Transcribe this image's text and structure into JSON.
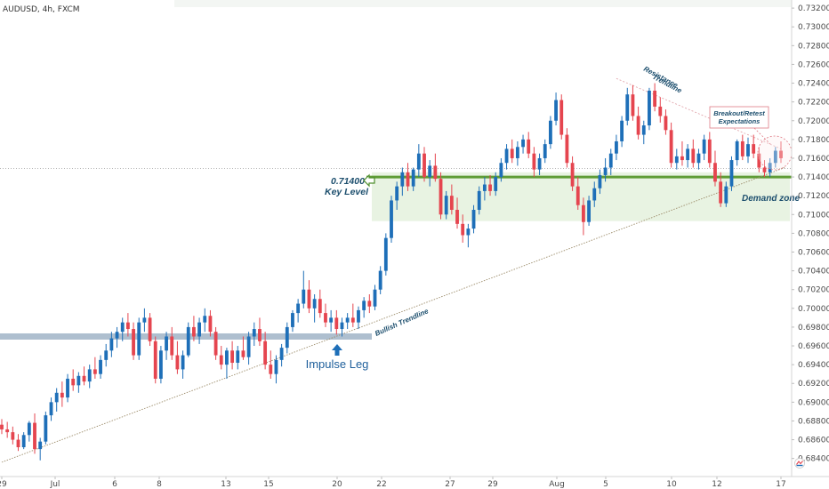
{
  "header": {
    "symbol": "AUDUSD, 4h, FXCM"
  },
  "colors": {
    "bull": "#1e6fb8",
    "bear": "#e5454f",
    "key_level": "#5f9c36",
    "demand_zone": "#e8f3e2",
    "impulse_band": "#aebfcf",
    "trendline": "#9c8c6a",
    "annotation_text": "#1d4f6e",
    "resistance": "#e2a7ad"
  },
  "chart_data": {
    "type": "candlestick",
    "title": "AUDUSD, 4h, FXCM",
    "ylim": [
      0.6834,
      0.7322
    ],
    "y_ticks": [
      "0.73200",
      "0.73000",
      "0.72800",
      "0.72600",
      "0.72400",
      "0.72200",
      "0.72000",
      "0.71800",
      "0.71600",
      "0.71400",
      "0.71200",
      "0.71000",
      "0.70800",
      "0.70600",
      "0.70400",
      "0.70200",
      "0.70000",
      "0.69800",
      "0.69600",
      "0.69400",
      "0.69200",
      "0.69000",
      "0.68800",
      "0.68600",
      "0.68400"
    ],
    "x_ticks": [
      "29",
      "Jul",
      "6",
      "8",
      "13",
      "15",
      "20",
      "22",
      "27",
      "29",
      "Aug",
      "5",
      "10",
      "12",
      "17"
    ],
    "candles": [
      [
        0.6876,
        0.6882,
        0.6866,
        0.6871
      ],
      [
        0.6871,
        0.6879,
        0.6862,
        0.6868
      ],
      [
        0.6868,
        0.6874,
        0.6855,
        0.686
      ],
      [
        0.686,
        0.6866,
        0.6848,
        0.6852
      ],
      [
        0.6852,
        0.6868,
        0.685,
        0.6865
      ],
      [
        0.6865,
        0.688,
        0.6858,
        0.6878
      ],
      [
        0.6878,
        0.6888,
        0.6845,
        0.685
      ],
      [
        0.685,
        0.6862,
        0.6838,
        0.6858
      ],
      [
        0.6858,
        0.689,
        0.6855,
        0.6886
      ],
      [
        0.6886,
        0.6905,
        0.688,
        0.69
      ],
      [
        0.69,
        0.6915,
        0.689,
        0.691
      ],
      [
        0.691,
        0.6922,
        0.6895,
        0.6905
      ],
      [
        0.6905,
        0.693,
        0.69,
        0.6925
      ],
      [
        0.6925,
        0.6935,
        0.6912,
        0.6918
      ],
      [
        0.6918,
        0.6932,
        0.691,
        0.6928
      ],
      [
        0.6928,
        0.6938,
        0.6918,
        0.6922
      ],
      [
        0.6922,
        0.694,
        0.6915,
        0.6935
      ],
      [
        0.6935,
        0.6948,
        0.6925,
        0.693
      ],
      [
        0.693,
        0.695,
        0.6925,
        0.6945
      ],
      [
        0.6945,
        0.6962,
        0.6938,
        0.6955
      ],
      [
        0.6955,
        0.6975,
        0.6948,
        0.6968
      ],
      [
        0.6968,
        0.698,
        0.6958,
        0.6975
      ],
      [
        0.6975,
        0.699,
        0.6965,
        0.6985
      ],
      [
        0.6985,
        0.6995,
        0.697,
        0.6978
      ],
      [
        0.6978,
        0.6985,
        0.6945,
        0.695
      ],
      [
        0.695,
        0.699,
        0.6945,
        0.6985
      ],
      [
        0.6985,
        0.7,
        0.6975,
        0.699
      ],
      [
        0.699,
        0.6995,
        0.696,
        0.6965
      ],
      [
        0.6965,
        0.697,
        0.692,
        0.6925
      ],
      [
        0.6925,
        0.696,
        0.692,
        0.6955
      ],
      [
        0.6955,
        0.6975,
        0.6945,
        0.697
      ],
      [
        0.697,
        0.698,
        0.6945,
        0.695
      ],
      [
        0.695,
        0.6965,
        0.693,
        0.6935
      ],
      [
        0.6935,
        0.6955,
        0.6925,
        0.695
      ],
      [
        0.695,
        0.6985,
        0.6948,
        0.698
      ],
      [
        0.698,
        0.6992,
        0.6965,
        0.697
      ],
      [
        0.697,
        0.699,
        0.6962,
        0.6985
      ],
      [
        0.6985,
        0.7,
        0.6975,
        0.6992
      ],
      [
        0.6992,
        0.6998,
        0.697,
        0.6975
      ],
      [
        0.6975,
        0.698,
        0.6945,
        0.695
      ],
      [
        0.695,
        0.696,
        0.6935,
        0.694
      ],
      [
        0.694,
        0.6958,
        0.6925,
        0.6955
      ],
      [
        0.6955,
        0.6965,
        0.6935,
        0.6942
      ],
      [
        0.6942,
        0.696,
        0.6935,
        0.6955
      ],
      [
        0.6955,
        0.697,
        0.6945,
        0.6948
      ],
      [
        0.6948,
        0.6975,
        0.694,
        0.697
      ],
      [
        0.697,
        0.6985,
        0.696,
        0.6978
      ],
      [
        0.6978,
        0.699,
        0.696,
        0.6965
      ],
      [
        0.6965,
        0.6975,
        0.6935,
        0.694
      ],
      [
        0.694,
        0.6955,
        0.6925,
        0.693
      ],
      [
        0.693,
        0.695,
        0.692,
        0.6945
      ],
      [
        0.6945,
        0.6962,
        0.6938,
        0.6958
      ],
      [
        0.6958,
        0.6985,
        0.6952,
        0.698
      ],
      [
        0.698,
        0.6998,
        0.6975,
        0.6995
      ],
      [
        0.6995,
        0.701,
        0.6985,
        0.7005
      ],
      [
        0.7005,
        0.704,
        0.7,
        0.702
      ],
      [
        0.702,
        0.703,
        0.6995,
        0.7
      ],
      [
        0.7,
        0.7015,
        0.6985,
        0.701
      ],
      [
        0.701,
        0.702,
        0.699,
        0.6995
      ],
      [
        0.6995,
        0.7005,
        0.698,
        0.6985
      ],
      [
        0.6985,
        0.6998,
        0.6975,
        0.699
      ],
      [
        0.699,
        0.6998,
        0.6972,
        0.6978
      ],
      [
        0.6978,
        0.699,
        0.697,
        0.6985
      ],
      [
        0.6985,
        0.6995,
        0.6978,
        0.699
      ],
      [
        0.699,
        0.7005,
        0.698,
        0.6985
      ],
      [
        0.6985,
        0.7002,
        0.6978,
        0.6998
      ],
      [
        0.6998,
        0.7012,
        0.699,
        0.7008
      ],
      [
        0.7008,
        0.7015,
        0.6995,
        0.7002
      ],
      [
        0.7002,
        0.7025,
        0.6998,
        0.702
      ],
      [
        0.702,
        0.7045,
        0.7015,
        0.704
      ],
      [
        0.704,
        0.708,
        0.7035,
        0.7075
      ],
      [
        0.7075,
        0.712,
        0.707,
        0.7115
      ],
      [
        0.7115,
        0.7135,
        0.7105,
        0.713
      ],
      [
        0.713,
        0.715,
        0.712,
        0.7145
      ],
      [
        0.7145,
        0.7155,
        0.7125,
        0.713
      ],
      [
        0.713,
        0.715,
        0.7125,
        0.7148
      ],
      [
        0.7148,
        0.7175,
        0.714,
        0.7165
      ],
      [
        0.7165,
        0.7172,
        0.7135,
        0.714
      ],
      [
        0.714,
        0.7158,
        0.713,
        0.7152
      ],
      [
        0.7152,
        0.7165,
        0.7135,
        0.7138
      ],
      [
        0.7138,
        0.7145,
        0.7095,
        0.71
      ],
      [
        0.71,
        0.7125,
        0.7095,
        0.712
      ],
      [
        0.712,
        0.7132,
        0.71,
        0.7105
      ],
      [
        0.7105,
        0.7118,
        0.7085,
        0.709
      ],
      [
        0.709,
        0.71,
        0.707,
        0.7078
      ],
      [
        0.7078,
        0.709,
        0.7065,
        0.7085
      ],
      [
        0.7085,
        0.711,
        0.708,
        0.7105
      ],
      [
        0.7105,
        0.713,
        0.71,
        0.7125
      ],
      [
        0.7125,
        0.714,
        0.7115,
        0.7132
      ],
      [
        0.7132,
        0.7142,
        0.712,
        0.7125
      ],
      [
        0.7125,
        0.7145,
        0.712,
        0.714
      ],
      [
        0.714,
        0.716,
        0.7135,
        0.7155
      ],
      [
        0.7155,
        0.7175,
        0.7148,
        0.717
      ],
      [
        0.717,
        0.718,
        0.7155,
        0.716
      ],
      [
        0.716,
        0.7178,
        0.7152,
        0.7172
      ],
      [
        0.7172,
        0.7185,
        0.7165,
        0.718
      ],
      [
        0.718,
        0.7188,
        0.716,
        0.7165
      ],
      [
        0.7165,
        0.7172,
        0.714,
        0.7148
      ],
      [
        0.7148,
        0.7165,
        0.7142,
        0.716
      ],
      [
        0.716,
        0.718,
        0.7155,
        0.7175
      ],
      [
        0.7175,
        0.7205,
        0.717,
        0.72
      ],
      [
        0.72,
        0.723,
        0.7195,
        0.7222
      ],
      [
        0.7222,
        0.7228,
        0.718,
        0.7185
      ],
      [
        0.7185,
        0.7192,
        0.715,
        0.7155
      ],
      [
        0.7155,
        0.7162,
        0.7125,
        0.713
      ],
      [
        0.713,
        0.714,
        0.7105,
        0.711
      ],
      [
        0.711,
        0.7118,
        0.7078,
        0.7092
      ],
      [
        0.7092,
        0.712,
        0.7088,
        0.7115
      ],
      [
        0.7115,
        0.7135,
        0.7108,
        0.7128
      ],
      [
        0.7128,
        0.7148,
        0.7122,
        0.7142
      ],
      [
        0.7142,
        0.716,
        0.7135,
        0.715
      ],
      [
        0.715,
        0.717,
        0.7142,
        0.7165
      ],
      [
        0.7165,
        0.7185,
        0.7158,
        0.7178
      ],
      [
        0.7178,
        0.7205,
        0.7172,
        0.72
      ],
      [
        0.72,
        0.7235,
        0.7195,
        0.7228
      ],
      [
        0.7228,
        0.7238,
        0.72,
        0.7205
      ],
      [
        0.7205,
        0.7215,
        0.718,
        0.7185
      ],
      [
        0.7185,
        0.72,
        0.7175,
        0.7195
      ],
      [
        0.7195,
        0.7235,
        0.719,
        0.7232
      ],
      [
        0.7232,
        0.724,
        0.721,
        0.7215
      ],
      [
        0.7215,
        0.7225,
        0.7198,
        0.7205
      ],
      [
        0.7205,
        0.7212,
        0.7185,
        0.719
      ],
      [
        0.719,
        0.7198,
        0.715,
        0.7155
      ],
      [
        0.7155,
        0.717,
        0.7148,
        0.7162
      ],
      [
        0.7162,
        0.7178,
        0.7152,
        0.7158
      ],
      [
        0.7158,
        0.7175,
        0.715,
        0.717
      ],
      [
        0.717,
        0.718,
        0.715,
        0.7155
      ],
      [
        0.7155,
        0.717,
        0.7148,
        0.7165
      ],
      [
        0.7165,
        0.7185,
        0.7158,
        0.718
      ],
      [
        0.718,
        0.7188,
        0.715,
        0.7155
      ],
      [
        0.7155,
        0.7168,
        0.713,
        0.7135
      ],
      [
        0.7135,
        0.7145,
        0.7108,
        0.7112
      ],
      [
        0.7112,
        0.7135,
        0.7108,
        0.713
      ],
      [
        0.713,
        0.7162,
        0.7125,
        0.7158
      ],
      [
        0.7158,
        0.718,
        0.7152,
        0.7178
      ],
      [
        0.7178,
        0.7185,
        0.7158,
        0.7162
      ],
      [
        0.7162,
        0.7182,
        0.7155,
        0.7175
      ],
      [
        0.7175,
        0.7185,
        0.716,
        0.7165
      ],
      [
        0.7165,
        0.7172,
        0.7145,
        0.715
      ],
      [
        0.715,
        0.7158,
        0.714,
        0.7145
      ],
      [
        0.7145,
        0.716,
        0.714,
        0.7155
      ],
      [
        0.7155,
        0.7172,
        0.715,
        0.7168
      ],
      [
        0.7168,
        0.7178,
        0.7155,
        0.716
      ]
    ],
    "key_level": {
      "price": 0.714,
      "label_value": "0.71400",
      "label_text": "Key Level"
    },
    "demand_zone": {
      "top": 0.7145,
      "bottom": 0.7093,
      "label": "Demand zone"
    },
    "reference_line_price": 0.7149,
    "bullish_trendline": {
      "label": "Bullish Trendline",
      "start": [
        0,
        0.6836
      ],
      "end": [
        142,
        0.7149
      ]
    },
    "resistance_trendline": {
      "label_line1": "Resistance",
      "label_line2": "Trendline",
      "start": [
        112,
        0.7245
      ],
      "end": [
        142,
        0.717
      ]
    },
    "impulse_band": {
      "price": 0.697,
      "label": "Impulse Leg"
    },
    "breakout_box": {
      "line1": "Breakout/Retest",
      "line2": "Expectations"
    }
  }
}
